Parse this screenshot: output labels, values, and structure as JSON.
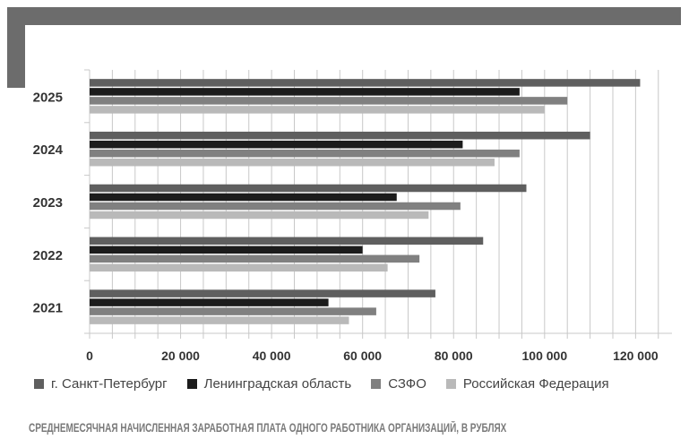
{
  "chart_data": {
    "type": "bar",
    "orientation": "horizontal",
    "categories": [
      "2025",
      "2024",
      "2023",
      "2022",
      "2021"
    ],
    "series": [
      {
        "name": "г. Санкт-Петербург",
        "color": "#5f5f5f",
        "values": [
          121000,
          110000,
          96000,
          86500,
          76000
        ]
      },
      {
        "name": "Ленинградская область",
        "color": "#1c1c1c",
        "values": [
          94500,
          82000,
          67500,
          60000,
          52500
        ]
      },
      {
        "name": "СЗФО",
        "color": "#808080",
        "values": [
          105000,
          94500,
          81500,
          72500,
          63000
        ]
      },
      {
        "name": "Российская Федерация",
        "color": "#b9b9b9",
        "values": [
          100000,
          89000,
          74500,
          65500,
          57000
        ]
      }
    ],
    "xlim": [
      0,
      128000
    ],
    "x_ticks": [
      0,
      20000,
      40000,
      60000,
      80000,
      100000,
      120000
    ],
    "x_tick_labels": [
      "0",
      "20 000",
      "40 000",
      "60 000",
      "80 000",
      "100 000",
      "120 000"
    ],
    "grid": true,
    "legend_position": "bottom",
    "title": "СРЕДНЕМЕСЯЧНАЯ НАЧИСЛЕННАЯ ЗАРАБОТНАЯ ПЛАТА ОДНОГО РАБОТНИКА ОРГАНИЗАЦИЙ, В РУБЛЯХ"
  }
}
